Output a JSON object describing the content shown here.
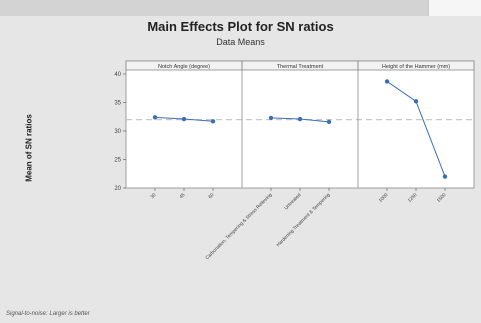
{
  "title": "Main Effects Plot for SN ratios",
  "subtitle": "Data Means",
  "footnote": "Signal-to-noise: Larger is better",
  "colors": {
    "line": "#3b6fb5",
    "reference_line": "#c8c8c8",
    "panel_bg": "#ffffff",
    "figure_bg": "#e6e6e6"
  },
  "chart_data": {
    "type": "line",
    "title": "Main Effects Plot for SN ratios",
    "subtitle": "Data Means",
    "ylabel": "Mean of SN ratios",
    "ylim": [
      20,
      40
    ],
    "yticks": [
      20,
      25,
      30,
      35,
      40
    ],
    "reference_line": 32,
    "grid": false,
    "panels": [
      {
        "name": "Notch Angle (degree)",
        "categories": [
          "30",
          "45",
          "60"
        ],
        "values": [
          32.4,
          32.1,
          31.7
        ]
      },
      {
        "name": "Thermal Treatment",
        "categories": [
          "Carbonation, Tempering & Stress Relieving",
          "Untreated",
          "Hardening Treatment & Tempering"
        ],
        "values": [
          32.3,
          32.1,
          31.6
        ]
      },
      {
        "name": "Height of the Hammer (mm)",
        "categories": [
          "1000",
          "1250",
          "1500"
        ],
        "values": [
          38.7,
          35.2,
          22.0
        ]
      }
    ]
  }
}
